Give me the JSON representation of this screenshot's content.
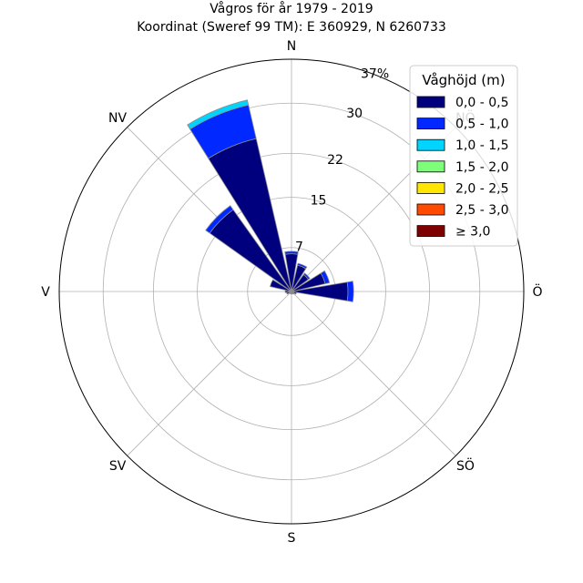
{
  "chart_data": {
    "type": "windrose",
    "title": "Vågros för år 1979 - 2019",
    "subtitle": "Koordinat (Sweref 99 TM): E 360929, N 6260733",
    "directions": [
      "N",
      "NV",
      "V",
      "SV",
      "S",
      "SÖ",
      "Ö",
      "NÖ"
    ],
    "direction_angles": [
      0,
      315,
      270,
      225,
      180,
      135,
      90,
      45
    ],
    "radial_ticks": [
      7,
      15,
      22,
      30
    ],
    "radial_max": 37,
    "radial_max_label": "37%",
    "legend": {
      "title": "Våghöjd (m)",
      "placement": "top-right",
      "entries": [
        {
          "label": "0,0 - 0,5",
          "color": "#00007f"
        },
        {
          "label": "0,5 - 1,0",
          "color": "#0028ff"
        },
        {
          "label": "1,0 - 1,5",
          "color": "#00d4ff"
        },
        {
          "label": "1,5 - 2,0",
          "color": "#7dff7a"
        },
        {
          "label": "2,0 - 2,5",
          "color": "#ffe500"
        },
        {
          "label": "2,5 - 3,0",
          "color": "#ff4a00"
        },
        {
          "label": "≥ 3,0",
          "color": "#7f0000"
        }
      ]
    },
    "bars": [
      {
        "angle": 0,
        "values": [
          6.0,
          0.4
        ]
      },
      {
        "angle": 22.5,
        "values": [
          4.3,
          0.3
        ]
      },
      {
        "angle": 45,
        "values": [
          3.3,
          0.3
        ]
      },
      {
        "angle": 67.5,
        "values": [
          5.5,
          0.7
        ]
      },
      {
        "angle": 90,
        "values": [
          9.0,
          0.9
        ]
      },
      {
        "angle": 112.5,
        "values": [
          0.8
        ]
      },
      {
        "angle": 135,
        "values": [
          0.5
        ]
      },
      {
        "angle": 157.5,
        "values": [
          0.4
        ]
      },
      {
        "angle": 180,
        "values": [
          0.4
        ]
      },
      {
        "angle": 202.5,
        "values": [
          0.4
        ]
      },
      {
        "angle": 225,
        "values": [
          0.4
        ]
      },
      {
        "angle": 247.5,
        "values": [
          0.8
        ]
      },
      {
        "angle": 270,
        "values": [
          1.0
        ]
      },
      {
        "angle": 292.5,
        "values": [
          3.5
        ]
      },
      {
        "angle": 315,
        "values": [
          16.0,
          0.8
        ]
      },
      {
        "angle": 337.5,
        "values": [
          25.0,
          5.5,
          0.8
        ]
      }
    ]
  }
}
